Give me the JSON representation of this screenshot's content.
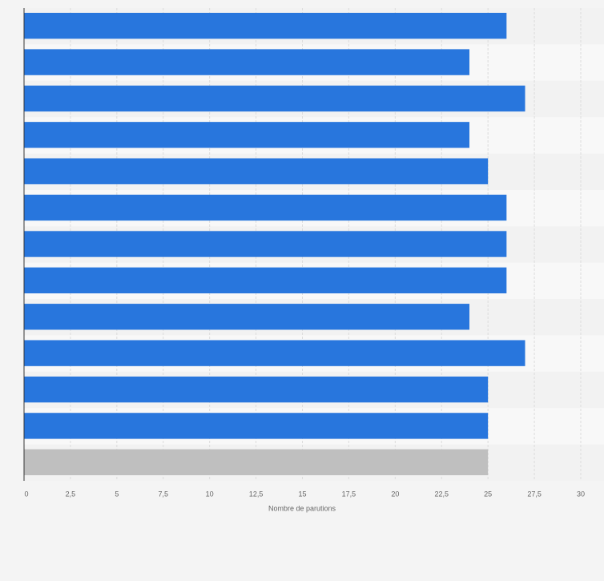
{
  "chart_data": {
    "type": "bar",
    "orientation": "horizontal",
    "x_label": "Nombre de parutions",
    "categories": [
      null,
      null,
      null,
      null,
      null,
      null,
      null,
      null,
      null,
      null,
      null,
      null,
      null
    ],
    "values": [
      26,
      24,
      27,
      24,
      25,
      26,
      26,
      26,
      24,
      27,
      25,
      25,
      25
    ],
    "colors": [
      "#2876dd",
      "#2876dd",
      "#2876dd",
      "#2876dd",
      "#2876dd",
      "#2876dd",
      "#2876dd",
      "#2876dd",
      "#2876dd",
      "#2876dd",
      "#2876dd",
      "#2876dd",
      "#bfbfbf"
    ],
    "xlim": [
      0,
      30
    ],
    "xticks": [
      0,
      {
        "value": 2.5,
        "label": "2,5"
      },
      5,
      {
        "value": 7.5,
        "label": "7,5"
      },
      10,
      {
        "value": 12.5,
        "label": "12,5"
      },
      15,
      {
        "value": 17.5,
        "label": "17,5"
      },
      20,
      {
        "value": 22.5,
        "label": "22,5"
      },
      25,
      {
        "value": 27.5,
        "label": "27,5"
      },
      30
    ],
    "grid": true
  }
}
